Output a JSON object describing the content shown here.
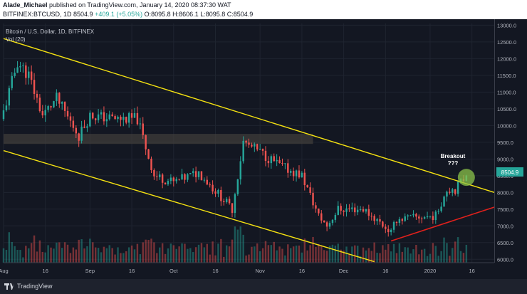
{
  "header": {
    "author": "Alade_Michael",
    "published_text": "published on TradingView.com, January 14, 2020 08:37:30 WAT",
    "symbol_line": "BITFINEX:BTCUSD, 1D  8504.9",
    "change_text": "+409.1 (+5.05%)",
    "ohlc_text": "O:8095.8  H:8606.1  L:8095.8  C:8504.9"
  },
  "legend": {
    "title": "Bitcoin / U.S. Dollar, 1D, BITFINEX",
    "volume": "Vol (20)"
  },
  "annotation": {
    "line1": "Breakout",
    "line2": "???"
  },
  "price_label": "8504.9",
  "footer": {
    "brand": "TradingView"
  },
  "colors": {
    "background": "#131722",
    "up": "#26a69a",
    "down": "#ef5350",
    "channel": "#f5e211",
    "support": "#e0211c",
    "breakout_circle": "#8bc34a"
  },
  "chart_data": {
    "type": "candlestick",
    "yaxis": {
      "ticks": [
        6000,
        6500,
        7000,
        7500,
        8000,
        8500,
        9000,
        9500,
        10000,
        10500,
        11000,
        11500,
        12000,
        12500,
        13000
      ],
      "tick_labels": [
        "6000.0",
        "6500.0",
        "7000.0",
        "7500.0",
        "8000.0",
        "8500.0",
        "9000.0",
        "9500.0",
        "10000.0",
        "10500.0",
        "11000.0",
        "11500.0",
        "12000.0",
        "12500.0",
        "13000.0"
      ],
      "range": [
        5900,
        13050
      ]
    },
    "xaxis": {
      "tick_labels": [
        "Aug",
        "16",
        "Sep",
        "16",
        "Oct",
        "16",
        "Nov",
        "16",
        "Dec",
        "16",
        "2020",
        "16"
      ],
      "tick_dates": [
        "2019-08-01",
        "2019-08-16",
        "2019-09-01",
        "2019-09-16",
        "2019-10-01",
        "2019-10-16",
        "2019-11-01",
        "2019-11-16",
        "2019-12-01",
        "2019-12-16",
        "2020-01-01",
        "2020-01-16"
      ],
      "range": [
        "2019-08-01",
        "2020-01-24"
      ]
    },
    "keypoints": [
      {
        "date": "2019-08-01",
        "close": 10400
      },
      {
        "date": "2019-08-06",
        "close": 11900
      },
      {
        "date": "2019-08-10",
        "close": 11500
      },
      {
        "date": "2019-08-15",
        "close": 10300
      },
      {
        "date": "2019-08-20",
        "close": 10800
      },
      {
        "date": "2019-08-28",
        "close": 9700
      },
      {
        "date": "2019-09-01",
        "close": 10300
      },
      {
        "date": "2019-09-10",
        "close": 10200
      },
      {
        "date": "2019-09-18",
        "close": 10200
      },
      {
        "date": "2019-09-24",
        "close": 8500
      },
      {
        "date": "2019-10-01",
        "close": 8300
      },
      {
        "date": "2019-10-10",
        "close": 8600
      },
      {
        "date": "2019-10-22",
        "close": 7500
      },
      {
        "date": "2019-10-26",
        "close": 9500
      },
      {
        "date": "2019-11-01",
        "close": 9200
      },
      {
        "date": "2019-11-08",
        "close": 8800
      },
      {
        "date": "2019-11-16",
        "close": 8500
      },
      {
        "date": "2019-11-22",
        "close": 7300
      },
      {
        "date": "2019-11-25",
        "close": 7000
      },
      {
        "date": "2019-11-29",
        "close": 7500
      },
      {
        "date": "2019-12-08",
        "close": 7500
      },
      {
        "date": "2019-12-14",
        "close": 7100
      },
      {
        "date": "2019-12-18",
        "close": 6800
      },
      {
        "date": "2019-12-20",
        "close": 7200
      },
      {
        "date": "2019-12-27",
        "close": 7250
      },
      {
        "date": "2020-01-03",
        "close": 7300
      },
      {
        "date": "2020-01-07",
        "close": 8100
      },
      {
        "date": "2020-01-10",
        "close": 8100
      },
      {
        "date": "2020-01-14",
        "close": 8504.9
      }
    ],
    "lines": [
      {
        "name": "channel-upper",
        "points": [
          [
            "2019-08-01",
            12600
          ],
          [
            "2020-01-24",
            8000
          ]
        ]
      },
      {
        "name": "channel-lower",
        "points": [
          [
            "2019-08-01",
            9250
          ],
          [
            "2019-12-12",
            5930
          ]
        ]
      },
      {
        "name": "support",
        "points": [
          [
            "2019-12-18",
            6550
          ],
          [
            "2020-01-24",
            7560
          ]
        ]
      }
    ],
    "zone": {
      "from": "2019-08-01",
      "to": "2019-11-20",
      "low": 9450,
      "high": 9750
    },
    "breakout": {
      "date": "2020-01-14",
      "price": 8450
    }
  }
}
